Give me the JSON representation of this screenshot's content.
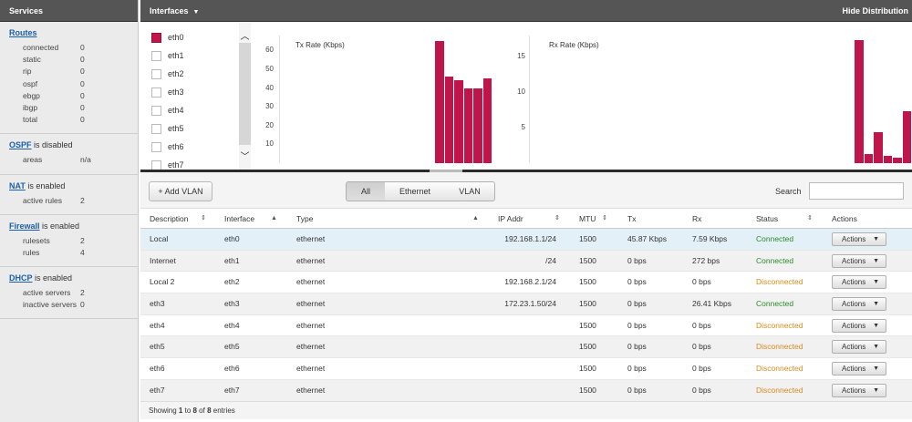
{
  "sidebar": {
    "header": "Services",
    "routes": {
      "title": "Routes",
      "rows": [
        {
          "k": "connected",
          "v": "0"
        },
        {
          "k": "static",
          "v": "0"
        },
        {
          "k": "rip",
          "v": "0"
        },
        {
          "k": "ospf",
          "v": "0"
        },
        {
          "k": "ebgp",
          "v": "0"
        },
        {
          "k": "ibgp",
          "v": "0"
        },
        {
          "k": "total",
          "v": "0"
        }
      ]
    },
    "ospf": {
      "title": "OSPF",
      "suffix": " is disabled",
      "rows": [
        {
          "k": "areas",
          "v": "n/a"
        }
      ]
    },
    "nat": {
      "title": "NAT",
      "suffix": " is enabled",
      "rows": [
        {
          "k": "active rules",
          "v": "2"
        }
      ]
    },
    "firewall": {
      "title": "Firewall",
      "suffix": " is enabled",
      "rows": [
        {
          "k": "rulesets",
          "v": "2"
        },
        {
          "k": "rules",
          "v": "4"
        }
      ]
    },
    "dhcp": {
      "title": "DHCP",
      "suffix": " is enabled",
      "rows": [
        {
          "k": "active servers",
          "v": "2"
        },
        {
          "k": "inactive servers",
          "v": "0"
        }
      ]
    }
  },
  "topbar": {
    "title": "Interfaces",
    "hide_label": "Hide Distribution"
  },
  "iflist": {
    "items": [
      {
        "label": "eth0",
        "checked": true
      },
      {
        "label": "eth1",
        "checked": false
      },
      {
        "label": "eth2",
        "checked": false
      },
      {
        "label": "eth3",
        "checked": false
      },
      {
        "label": "eth4",
        "checked": false
      },
      {
        "label": "eth5",
        "checked": false
      },
      {
        "label": "eth6",
        "checked": false
      },
      {
        "label": "eth7",
        "checked": false
      }
    ]
  },
  "chart_data": [
    {
      "type": "bar",
      "title": "Tx Rate (Kbps)",
      "yticks": [
        "60",
        "50",
        "40",
        "30",
        "20",
        "10"
      ],
      "ylim": [
        0,
        68
      ],
      "values": [
        65,
        46,
        44,
        40,
        40,
        45
      ],
      "color": "#c0154b"
    },
    {
      "type": "bar",
      "title": "Rx Rate (Kbps)",
      "yticks": [
        "15",
        "10",
        "5"
      ],
      "ylim": [
        0,
        18
      ],
      "values": [
        17.4,
        1.3,
        4.4,
        1.0,
        0.8,
        7.3
      ],
      "color": "#c0154b"
    }
  ],
  "toolbar": {
    "add_vlan": "+ Add VLAN",
    "filters": [
      "All",
      "Ethernet",
      "VLAN"
    ],
    "search_label": "Search",
    "search_value": ""
  },
  "table": {
    "headers": [
      "Description",
      "Interface",
      "Type",
      "IP Addr",
      "MTU",
      "Tx",
      "Rx",
      "Status",
      "Actions"
    ],
    "rows": [
      {
        "desc": "Local",
        "iface": "eth0",
        "type": "ethernet",
        "ip": "192.168.1.1/24",
        "mtu": "1500",
        "tx": "45.87 Kbps",
        "rx": "7.59 Kbps",
        "status": "Connected"
      },
      {
        "desc": "Internet",
        "iface": "eth1",
        "type": "ethernet",
        "ip": "/24",
        "mtu": "1500",
        "tx": "0 bps",
        "rx": "272 bps",
        "status": "Connected"
      },
      {
        "desc": "Local 2",
        "iface": "eth2",
        "type": "ethernet",
        "ip": "192.168.2.1/24",
        "mtu": "1500",
        "tx": "0 bps",
        "rx": "0 bps",
        "status": "Disconnected"
      },
      {
        "desc": "eth3",
        "iface": "eth3",
        "type": "ethernet",
        "ip": "172.23.1.50/24",
        "mtu": "1500",
        "tx": "0 bps",
        "rx": "26.41 Kbps",
        "status": "Connected"
      },
      {
        "desc": "eth4",
        "iface": "eth4",
        "type": "ethernet",
        "ip": "",
        "mtu": "1500",
        "tx": "0 bps",
        "rx": "0 bps",
        "status": "Disconnected"
      },
      {
        "desc": "eth5",
        "iface": "eth5",
        "type": "ethernet",
        "ip": "",
        "mtu": "1500",
        "tx": "0 bps",
        "rx": "0 bps",
        "status": "Disconnected"
      },
      {
        "desc": "eth6",
        "iface": "eth6",
        "type": "ethernet",
        "ip": "",
        "mtu": "1500",
        "tx": "0 bps",
        "rx": "0 bps",
        "status": "Disconnected"
      },
      {
        "desc": "eth7",
        "iface": "eth7",
        "type": "ethernet",
        "ip": "",
        "mtu": "1500",
        "tx": "0 bps",
        "rx": "0 bps",
        "status": "Disconnected"
      }
    ],
    "action_label": "Actions",
    "footer": {
      "prefix": "Showing ",
      "from": "1",
      "mid1": " to ",
      "to": "8",
      "mid2": " of ",
      "total": "8",
      "suffix": " entries"
    }
  },
  "colors": {
    "accent": "#c0154b",
    "connected": "#2c8a2c",
    "disconnected": "#d98a1e"
  }
}
